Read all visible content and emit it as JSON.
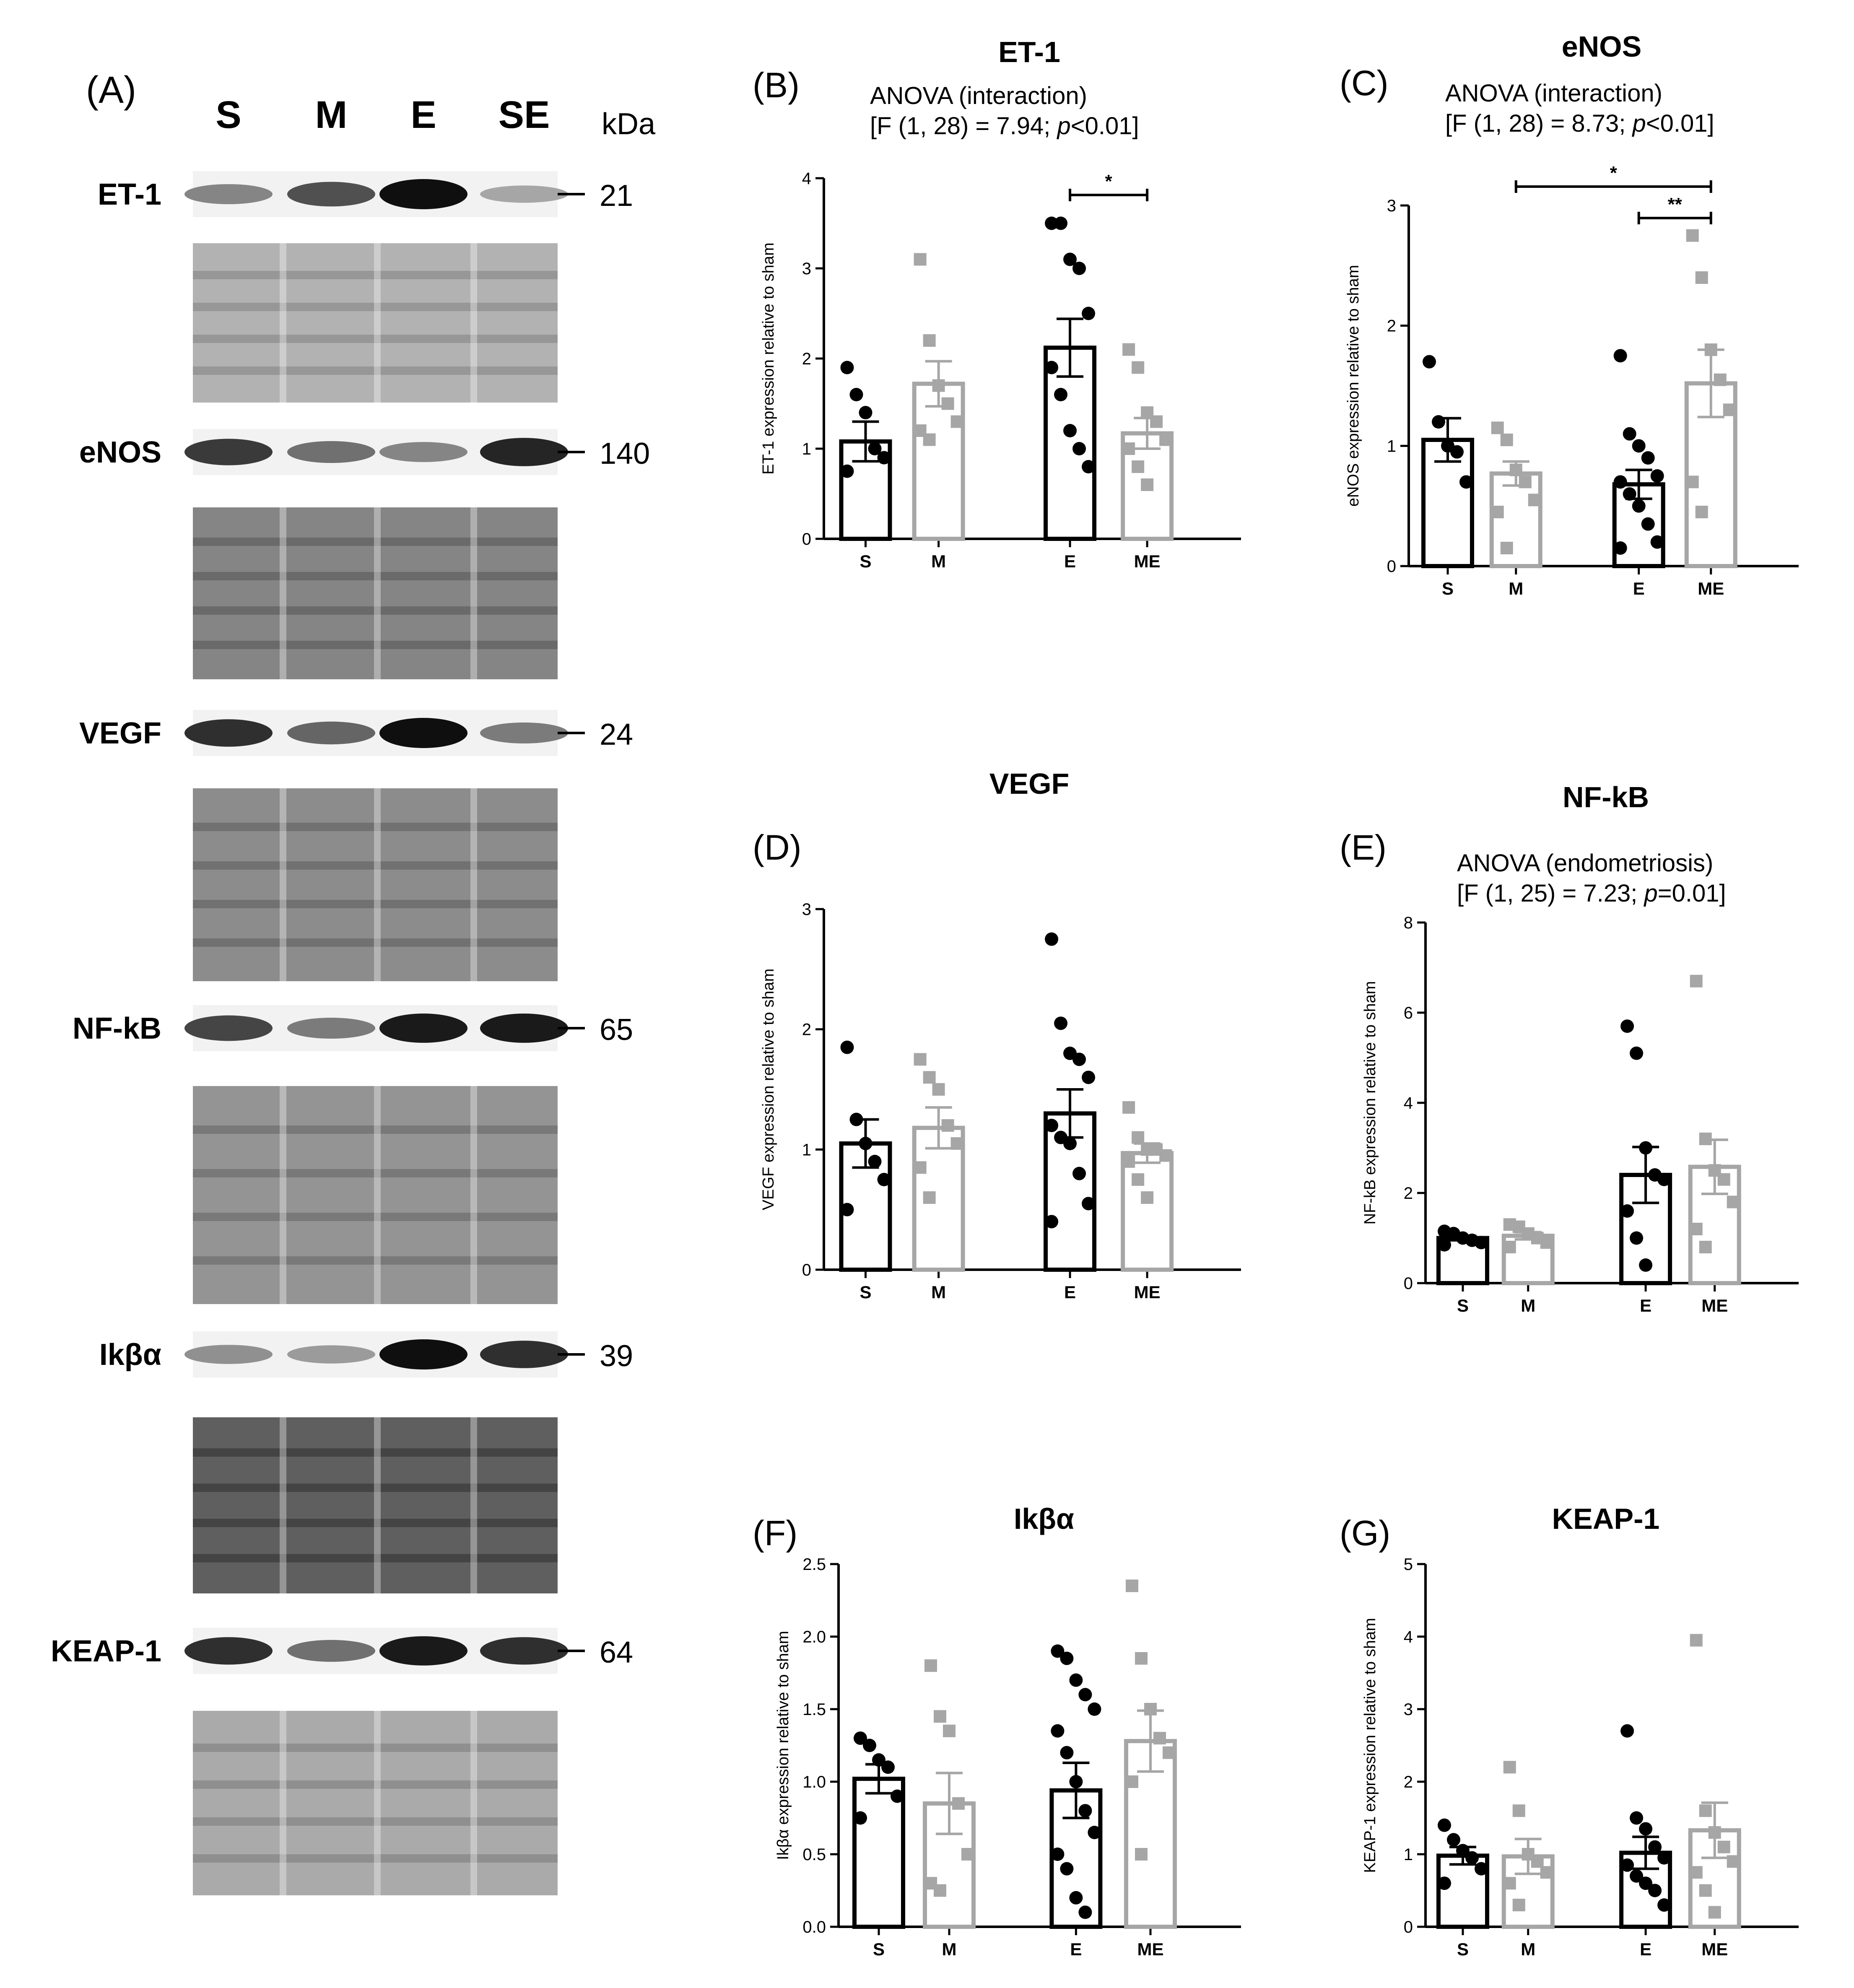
{
  "western_blot": {
    "panel_letter": "(A)",
    "lanes": [
      "S",
      "M",
      "E",
      "SE"
    ],
    "kda_header": "kDa",
    "blots": [
      {
        "protein": "ET-1",
        "kda": "21",
        "intensities": [
          0.45,
          0.7,
          1.0,
          0.3
        ]
      },
      {
        "protein": "eNOS",
        "kda": "140",
        "intensities": [
          0.8,
          0.55,
          0.45,
          0.9
        ]
      },
      {
        "protein": "VEGF",
        "kda": "24",
        "intensities": [
          0.85,
          0.6,
          1.0,
          0.5
        ]
      },
      {
        "protein": "NF-kB",
        "kda": "65",
        "intensities": [
          0.75,
          0.5,
          0.95,
          0.95
        ]
      },
      {
        "protein": "Ikβα",
        "kda": "39",
        "intensities": [
          0.4,
          0.35,
          1.0,
          0.85
        ]
      },
      {
        "protein": "KEAP-1",
        "kda": "64",
        "intensities": [
          0.85,
          0.55,
          0.95,
          0.85
        ]
      }
    ]
  },
  "chart_data": [
    {
      "panel": "(B)",
      "type": "bar",
      "title": "ET-1",
      "stats": [
        "ANOVA (interaction)",
        "[F (1, 28) = 7.94; ",
        "p",
        "<0.01]"
      ],
      "ylabel": "ET-1 expression relative to sham",
      "ylim": [
        0,
        4
      ],
      "yticks": [
        "0",
        "1",
        "2",
        "3",
        "4"
      ],
      "categories": [
        "S",
        "M",
        "E",
        "ME"
      ],
      "means": [
        1.08,
        1.72,
        2.12,
        1.17
      ],
      "sem": [
        0.22,
        0.25,
        0.32,
        0.17
      ],
      "points": [
        [
          1.9,
          1.6,
          1.4,
          1.0,
          0.9,
          0.75
        ],
        [
          3.1,
          2.2,
          1.7,
          1.5,
          1.3,
          1.2,
          1.1
        ],
        [
          3.5,
          3.5,
          3.1,
          3.0,
          2.5,
          1.9,
          1.6,
          1.2,
          1.0,
          0.8
        ],
        [
          2.1,
          1.9,
          1.4,
          1.3,
          1.1,
          1.0,
          0.8,
          0.6
        ]
      ],
      "significance": [
        {
          "from": 2,
          "to": 3,
          "label": "*"
        }
      ]
    },
    {
      "panel": "(C)",
      "type": "bar",
      "title": "eNOS",
      "stats": [
        "ANOVA (interaction)",
        "[F (1, 28) = 8.73; ",
        "p",
        "<0.01]"
      ],
      "ylabel": "eNOS expression relative to sham",
      "ylim": [
        0,
        3
      ],
      "yticks": [
        "0",
        "1",
        "2",
        "3"
      ],
      "categories": [
        "S",
        "M",
        "E",
        "ME"
      ],
      "means": [
        1.05,
        0.77,
        0.68,
        1.52
      ],
      "sem": [
        0.18,
        0.1,
        0.12,
        0.28
      ],
      "points": [
        [
          1.7,
          1.2,
          1.0,
          0.95,
          0.7
        ],
        [
          1.15,
          1.05,
          0.8,
          0.7,
          0.55,
          0.45,
          0.15
        ],
        [
          1.75,
          1.1,
          1.0,
          0.9,
          0.75,
          0.7,
          0.6,
          0.5,
          0.35,
          0.2,
          0.15
        ],
        [
          2.75,
          2.4,
          1.8,
          1.55,
          1.3,
          0.7,
          0.45
        ]
      ],
      "significance": [
        {
          "from": 1,
          "to": 3,
          "label": "*"
        },
        {
          "from": 2,
          "to": 3,
          "label": "**"
        }
      ]
    },
    {
      "panel": "(D)",
      "type": "bar",
      "title": "VEGF",
      "stats": [],
      "ylabel": "VEGF expression relative to sham",
      "ylim": [
        0,
        3
      ],
      "yticks": [
        "0",
        "1",
        "2",
        "3"
      ],
      "categories": [
        "S",
        "M",
        "E",
        "ME"
      ],
      "means": [
        1.05,
        1.18,
        1.3,
        0.97
      ],
      "sem": [
        0.2,
        0.17,
        0.2,
        0.08
      ],
      "points": [
        [
          1.85,
          1.25,
          1.05,
          0.9,
          0.75,
          0.5
        ],
        [
          1.75,
          1.6,
          1.5,
          1.2,
          1.05,
          0.85,
          0.6
        ],
        [
          2.75,
          2.05,
          1.8,
          1.75,
          1.6,
          1.2,
          1.1,
          1.05,
          0.8,
          0.55,
          0.4
        ],
        [
          1.35,
          1.1,
          1.0,
          1.0,
          0.95,
          0.9,
          0.75,
          0.6
        ]
      ],
      "significance": []
    },
    {
      "panel": "(E)",
      "type": "bar",
      "title": "NF-kB",
      "stats": [
        "ANOVA (endometriosis)",
        "[F (1, 25) = 7.23; ",
        "p",
        "=0.01]"
      ],
      "ylabel": "NF-kB expression relative to sham",
      "ylim": [
        0,
        8
      ],
      "yticks": [
        "0",
        "2",
        "4",
        "6",
        "8"
      ],
      "categories": [
        "S",
        "M",
        "E",
        "ME"
      ],
      "means": [
        1.0,
        1.05,
        2.4,
        2.58
      ],
      "sem": [
        0.05,
        0.08,
        0.62,
        0.6
      ],
      "points": [
        [
          1.15,
          1.1,
          1.0,
          0.95,
          0.9,
          0.85
        ],
        [
          1.3,
          1.25,
          1.1,
          1.0,
          0.9,
          0.8
        ],
        [
          5.7,
          5.1,
          3.0,
          2.4,
          2.3,
          1.6,
          1.0,
          0.4
        ],
        [
          6.7,
          3.2,
          2.5,
          2.3,
          1.8,
          1.2,
          0.8
        ]
      ],
      "significance": []
    },
    {
      "panel": "(F)",
      "type": "bar",
      "title": "Ikβα",
      "stats": [],
      "ylabel": "Ikβα expression relative to sham",
      "ylim": [
        0,
        2.5
      ],
      "yticks": [
        "0.0",
        "0.5",
        "1.0",
        "1.5",
        "2.0",
        "2.5"
      ],
      "categories": [
        "S",
        "M",
        "E",
        "ME"
      ],
      "means": [
        1.02,
        0.85,
        0.94,
        1.28
      ],
      "sem": [
        0.1,
        0.21,
        0.19,
        0.21
      ],
      "points": [
        [
          1.3,
          1.25,
          1.15,
          1.1,
          0.9,
          0.75
        ],
        [
          1.8,
          1.45,
          1.35,
          0.85,
          0.5,
          0.3,
          0.25
        ],
        [
          1.9,
          1.85,
          1.7,
          1.6,
          1.5,
          1.35,
          1.2,
          1.0,
          0.8,
          0.65,
          0.5,
          0.4,
          0.2,
          0.1
        ],
        [
          2.35,
          1.85,
          1.5,
          1.3,
          1.2,
          1.0,
          0.5
        ]
      ],
      "significance": []
    },
    {
      "panel": "(G)",
      "type": "bar",
      "title": "KEAP-1",
      "stats": [],
      "ylabel": "KEAP-1 expression relative to sham",
      "ylim": [
        0,
        5
      ],
      "yticks": [
        "0",
        "1",
        "2",
        "3",
        "4",
        "5"
      ],
      "categories": [
        "S",
        "M",
        "E",
        "ME"
      ],
      "means": [
        0.98,
        0.97,
        1.02,
        1.33
      ],
      "sem": [
        0.12,
        0.24,
        0.22,
        0.38
      ],
      "points": [
        [
          1.4,
          1.2,
          1.05,
          0.95,
          0.8,
          0.6
        ],
        [
          2.2,
          1.6,
          1.0,
          0.9,
          0.75,
          0.6,
          0.3
        ],
        [
          2.7,
          1.5,
          1.35,
          1.1,
          0.95,
          0.85,
          0.7,
          0.6,
          0.5,
          0.3
        ],
        [
          3.95,
          1.6,
          1.3,
          1.1,
          0.9,
          0.75,
          0.5,
          0.2
        ]
      ],
      "significance": []
    }
  ]
}
